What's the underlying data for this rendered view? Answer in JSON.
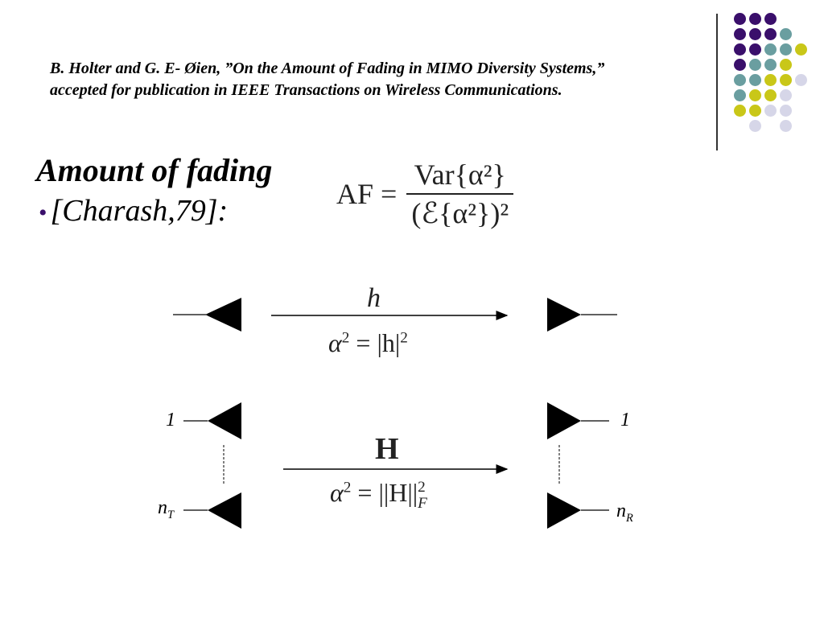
{
  "reference": "B. Holter and G. E- Øien, ”On the Amount of Fading in MIMO Diversity Systems,” accepted for publication in IEEE Transactions on Wireless Communications.",
  "title": "Amount of fading",
  "bullet": "[Charash,79]:",
  "formula": {
    "lhs": "AF =",
    "numerator": "Var{α²}",
    "denominator": "(ℰ{α²})²"
  },
  "siso": {
    "channel": "h",
    "alpha_lhs": "α",
    "alpha_rhs": "= |h|"
  },
  "mimo": {
    "channel": "H",
    "alpha_lhs": "α",
    "alpha_rhs": "= ||H||",
    "tx_first": "1",
    "tx_last_base": "n",
    "tx_last_sub": "T",
    "rx_first": "1",
    "rx_last_base": "n",
    "rx_last_sub": "R"
  },
  "decoration": {
    "colors": {
      "purple": "#3a0f6b",
      "teal": "#6a9ea0",
      "yellow": "#c9c718",
      "lavender": "#d6d6e8"
    },
    "grid": [
      "PPP..",
      "PPPT.",
      "PPTTY",
      "PTTY.",
      "TTYYL",
      "TYYL.",
      "YYLL.",
      ".L.L."
    ]
  }
}
